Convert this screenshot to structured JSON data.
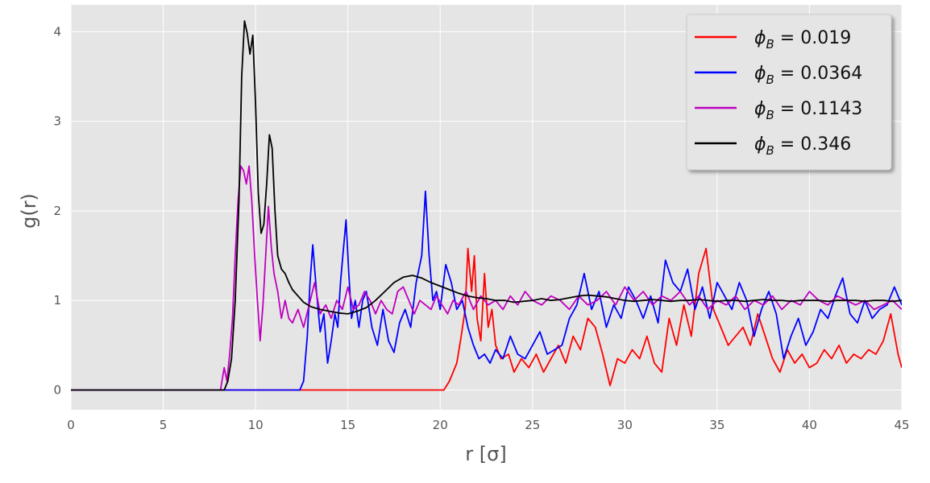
{
  "chart_data": {
    "type": "line",
    "xlabel": "r [σ]",
    "ylabel": "g(r)",
    "xlim": [
      0,
      45
    ],
    "ylim": [
      -0.22,
      4.3
    ],
    "xticks": [
      0,
      5,
      10,
      15,
      20,
      25,
      30,
      35,
      40,
      45
    ],
    "yticks": [
      0,
      1,
      2,
      3,
      4
    ],
    "grid": true,
    "legend_position": "top-right",
    "colors": {
      "background": "#e5e5e5",
      "grid": "#ffffff",
      "red": "#ff0000",
      "blue": "#0000ff",
      "magenta": "#bf00bf",
      "black": "#000000"
    },
    "series": [
      {
        "name": "ϕB = 0.019",
        "legend_parts": [
          "ϕ",
          "B",
          " = 0.019"
        ],
        "color": "#ff0000",
        "x": [
          0,
          20.2,
          20.5,
          20.9,
          21.1,
          21.35,
          21.5,
          21.7,
          21.85,
          22.0,
          22.2,
          22.4,
          22.6,
          22.8,
          23.0,
          23.3,
          23.7,
          24.0,
          24.4,
          24.8,
          25.2,
          25.6,
          26.0,
          26.4,
          26.8,
          27.2,
          27.6,
          28.0,
          28.4,
          28.8,
          29.2,
          29.6,
          30.0,
          30.4,
          30.8,
          31.2,
          31.6,
          32.0,
          32.4,
          32.8,
          33.2,
          33.6,
          34.0,
          34.4,
          34.8,
          35.2,
          35.6,
          36.0,
          36.4,
          36.8,
          37.2,
          37.6,
          38.0,
          38.4,
          38.8,
          39.2,
          39.6,
          40.0,
          40.4,
          40.8,
          41.2,
          41.6,
          42.0,
          42.4,
          42.8,
          43.2,
          43.6,
          44.0,
          44.4,
          44.8,
          45.0
        ],
        "y": [
          0,
          0,
          0.1,
          0.3,
          0.55,
          0.9,
          1.58,
          1.1,
          1.5,
          0.8,
          0.55,
          1.3,
          0.7,
          0.9,
          0.5,
          0.35,
          0.4,
          0.2,
          0.35,
          0.25,
          0.4,
          0.2,
          0.35,
          0.5,
          0.3,
          0.6,
          0.45,
          0.8,
          0.7,
          0.4,
          0.05,
          0.35,
          0.3,
          0.45,
          0.35,
          0.6,
          0.3,
          0.2,
          0.8,
          0.5,
          0.95,
          0.6,
          1.3,
          1.58,
          0.9,
          0.7,
          0.5,
          0.6,
          0.7,
          0.5,
          0.85,
          0.6,
          0.35,
          0.2,
          0.45,
          0.3,
          0.4,
          0.25,
          0.3,
          0.45,
          0.35,
          0.5,
          0.3,
          0.4,
          0.35,
          0.45,
          0.4,
          0.55,
          0.85,
          0.4,
          0.25
        ]
      },
      {
        "name": "ϕB = 0.0364",
        "legend_parts": [
          "ϕ",
          "B",
          " = 0.0364"
        ],
        "color": "#0000ff",
        "x": [
          0,
          12.4,
          12.6,
          12.8,
          12.95,
          13.1,
          13.3,
          13.5,
          13.7,
          13.9,
          14.1,
          14.3,
          14.45,
          14.6,
          14.75,
          14.9,
          15.05,
          15.2,
          15.4,
          15.6,
          15.8,
          16.0,
          16.3,
          16.6,
          16.9,
          17.2,
          17.5,
          17.8,
          18.1,
          18.4,
          18.7,
          19.0,
          19.2,
          19.4,
          19.6,
          19.8,
          20.0,
          20.3,
          20.6,
          20.9,
          21.2,
          21.5,
          21.8,
          22.1,
          22.4,
          22.7,
          23.0,
          23.4,
          23.8,
          24.2,
          24.6,
          25.0,
          25.4,
          25.8,
          26.2,
          26.6,
          27.0,
          27.4,
          27.8,
          28.2,
          28.6,
          29.0,
          29.4,
          29.8,
          30.2,
          30.6,
          31.0,
          31.4,
          31.8,
          32.2,
          32.6,
          33.0,
          33.4,
          33.8,
          34.2,
          34.6,
          35.0,
          35.4,
          35.8,
          36.2,
          36.6,
          37.0,
          37.4,
          37.8,
          38.2,
          38.6,
          39.0,
          39.4,
          39.8,
          40.2,
          40.6,
          41.0,
          41.4,
          41.8,
          42.2,
          42.6,
          43.0,
          43.4,
          43.8,
          44.2,
          44.6,
          45.0
        ],
        "y": [
          0,
          0,
          0.1,
          0.6,
          1.2,
          1.62,
          1.1,
          0.65,
          0.85,
          0.3,
          0.55,
          0.85,
          0.7,
          1.2,
          1.55,
          1.9,
          1.3,
          0.8,
          1.0,
          0.7,
          1.0,
          1.1,
          0.7,
          0.5,
          0.9,
          0.55,
          0.42,
          0.75,
          0.9,
          0.7,
          1.2,
          1.5,
          2.22,
          1.5,
          1.0,
          1.1,
          0.9,
          1.4,
          1.2,
          0.9,
          1.0,
          0.7,
          0.5,
          0.35,
          0.4,
          0.3,
          0.45,
          0.35,
          0.6,
          0.4,
          0.35,
          0.5,
          0.65,
          0.4,
          0.45,
          0.5,
          0.8,
          0.95,
          1.3,
          0.9,
          1.1,
          0.7,
          0.95,
          0.8,
          1.15,
          1.0,
          0.8,
          1.05,
          0.75,
          1.45,
          1.2,
          1.1,
          1.35,
          0.9,
          1.15,
          0.8,
          1.2,
          1.05,
          0.9,
          1.2,
          1.0,
          0.6,
          0.9,
          1.1,
          0.85,
          0.35,
          0.6,
          0.8,
          0.5,
          0.65,
          0.9,
          0.8,
          1.05,
          1.25,
          0.85,
          0.75,
          1.0,
          0.8,
          0.9,
          0.95,
          1.15,
          0.95
        ]
      },
      {
        "name": "ϕB = 0.1143",
        "legend_parts": [
          "ϕ",
          "B",
          " = 0.1143"
        ],
        "color": "#bf00bf",
        "x": [
          0,
          8.1,
          8.3,
          8.45,
          8.6,
          8.75,
          8.9,
          9.05,
          9.2,
          9.35,
          9.5,
          9.65,
          9.8,
          9.95,
          10.1,
          10.25,
          10.4,
          10.55,
          10.7,
          10.85,
          11.0,
          11.2,
          11.4,
          11.6,
          11.8,
          12.0,
          12.3,
          12.6,
          12.9,
          13.2,
          13.5,
          13.8,
          14.1,
          14.4,
          14.7,
          15.0,
          15.3,
          15.6,
          15.9,
          16.2,
          16.5,
          16.8,
          17.1,
          17.4,
          17.7,
          18.0,
          18.3,
          18.6,
          18.9,
          19.2,
          19.5,
          19.8,
          20.1,
          20.4,
          20.7,
          21.0,
          21.4,
          21.8,
          22.2,
          22.6,
          23.0,
          23.4,
          23.8,
          24.2,
          24.6,
          25.0,
          25.5,
          26.0,
          26.5,
          27.0,
          27.5,
          28.0,
          28.5,
          29.0,
          29.5,
          30.0,
          30.5,
          31.0,
          31.5,
          32.0,
          32.5,
          33.0,
          33.5,
          34.0,
          34.5,
          35.0,
          35.5,
          36.0,
          36.5,
          37.0,
          37.5,
          38.0,
          38.5,
          39.0,
          39.5,
          40.0,
          40.5,
          41.0,
          41.5,
          42.0,
          42.5,
          43.0,
          43.5,
          44.0,
          44.5,
          45.0
        ],
        "y": [
          0,
          0,
          0.25,
          0.1,
          0.4,
          0.8,
          1.5,
          2.1,
          2.5,
          2.45,
          2.3,
          2.5,
          2.1,
          1.5,
          1.0,
          0.55,
          0.95,
          1.5,
          2.05,
          1.6,
          1.3,
          1.1,
          0.8,
          1.0,
          0.8,
          0.75,
          0.9,
          0.7,
          0.95,
          1.2,
          0.85,
          0.95,
          0.8,
          1.0,
          0.9,
          1.15,
          0.9,
          0.95,
          1.1,
          1.0,
          0.85,
          1.0,
          0.9,
          0.85,
          1.1,
          1.15,
          1.0,
          0.85,
          1.0,
          0.95,
          0.9,
          1.05,
          0.95,
          0.85,
          1.0,
          0.95,
          1.1,
          0.9,
          1.05,
          0.95,
          1.0,
          0.9,
          1.05,
          0.95,
          1.1,
          1.0,
          0.95,
          1.05,
          1.0,
          0.9,
          1.05,
          0.95,
          1.0,
          1.1,
          0.95,
          1.15,
          1.0,
          1.1,
          0.95,
          1.05,
          1.0,
          1.1,
          0.95,
          1.05,
          0.9,
          1.0,
          0.95,
          1.05,
          0.9,
          1.0,
          0.95,
          1.05,
          0.9,
          1.0,
          0.95,
          1.1,
          1.0,
          0.95,
          1.05,
          1.0,
          0.95,
          1.0,
          0.9,
          0.95,
          1.0,
          0.9
        ]
      },
      {
        "name": "ϕB = 0.346",
        "legend_parts": [
          "ϕ",
          "B",
          " = 0.346"
        ],
        "color": "#000000",
        "x": [
          0,
          8.3,
          8.5,
          8.7,
          8.9,
          9.1,
          9.25,
          9.4,
          9.55,
          9.7,
          9.85,
          10.0,
          10.15,
          10.3,
          10.45,
          10.6,
          10.75,
          10.9,
          11.05,
          11.2,
          11.4,
          11.6,
          11.8,
          12.0,
          12.3,
          12.6,
          13.0,
          13.5,
          14.0,
          14.5,
          15.0,
          15.5,
          16.0,
          16.5,
          17.0,
          17.5,
          18.0,
          18.5,
          19.0,
          19.5,
          20.0,
          20.5,
          21.0,
          21.5,
          22.0,
          22.5,
          23.0,
          23.5,
          24.0,
          24.5,
          25.0,
          25.5,
          26.0,
          26.5,
          27.0,
          27.5,
          28.0,
          28.5,
          29.0,
          29.5,
          30.0,
          30.5,
          31.0,
          31.5,
          32.0,
          32.5,
          33.0,
          33.5,
          34.0,
          34.5,
          35.0,
          35.5,
          36.0,
          36.5,
          37.0,
          37.5,
          38.0,
          38.5,
          39.0,
          39.5,
          40.0,
          40.5,
          41.0,
          41.5,
          42.0,
          42.5,
          43.0,
          43.5,
          44.0,
          44.5,
          45.0
        ],
        "y": [
          0,
          0,
          0.1,
          0.35,
          1.0,
          2.1,
          3.5,
          4.12,
          3.98,
          3.75,
          3.96,
          3.2,
          2.2,
          1.75,
          1.85,
          2.3,
          2.85,
          2.7,
          2.0,
          1.5,
          1.35,
          1.3,
          1.2,
          1.12,
          1.05,
          0.98,
          0.93,
          0.9,
          0.88,
          0.86,
          0.85,
          0.88,
          0.92,
          1.0,
          1.1,
          1.2,
          1.26,
          1.28,
          1.25,
          1.2,
          1.16,
          1.12,
          1.08,
          1.05,
          1.03,
          1.02,
          1.0,
          1.0,
          0.98,
          0.99,
          1.0,
          1.02,
          1.0,
          1.01,
          1.03,
          1.05,
          1.06,
          1.05,
          1.04,
          1.02,
          1.0,
          0.99,
          1.0,
          1.01,
          1.0,
          0.99,
          1.0,
          1.0,
          1.01,
          1.0,
          0.99,
          1.0,
          1.0,
          0.99,
          1.0,
          1.01,
          1.0,
          1.0,
          0.99,
          1.0,
          1.0,
          1.0,
          0.99,
          1.0,
          1.0,
          1.0,
          0.99,
          1.0,
          1.0,
          0.99,
          1.0
        ]
      }
    ]
  }
}
